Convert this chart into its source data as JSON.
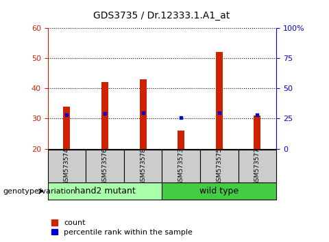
{
  "title": "GDS3735 / Dr.12333.1.A1_at",
  "categories": [
    "GSM573574",
    "GSM573576",
    "GSM573578",
    "GSM573573",
    "GSM573575",
    "GSM573577"
  ],
  "count_values": [
    34,
    42,
    43,
    26,
    52,
    31
  ],
  "percentile_values": [
    28,
    29,
    30,
    26,
    30,
    28
  ],
  "ylim_left": [
    20,
    60
  ],
  "ylim_right": [
    0,
    100
  ],
  "yticks_left": [
    20,
    30,
    40,
    50,
    60
  ],
  "yticks_right": [
    0,
    25,
    50,
    75,
    100
  ],
  "ytick_labels_right": [
    "0",
    "25",
    "50",
    "75",
    "100%"
  ],
  "bar_color": "#cc2200",
  "dot_color": "#0000cc",
  "bar_width": 0.18,
  "groups": [
    {
      "label": "hand2 mutant",
      "indices": [
        0,
        1,
        2
      ],
      "color": "#aaffaa"
    },
    {
      "label": "wild type",
      "indices": [
        3,
        4,
        5
      ],
      "color": "#44cc44"
    }
  ],
  "genotype_label": "genotype/variation",
  "legend_count_label": "count",
  "legend_percentile_label": "percentile rank within the sample",
  "tick_area_color": "#cccccc",
  "title_fontsize": 10,
  "axis_fontsize": 8,
  "legend_fontsize": 8,
  "genotype_fontsize": 8,
  "group_label_fontsize": 9,
  "sample_label_fontsize": 6.5
}
